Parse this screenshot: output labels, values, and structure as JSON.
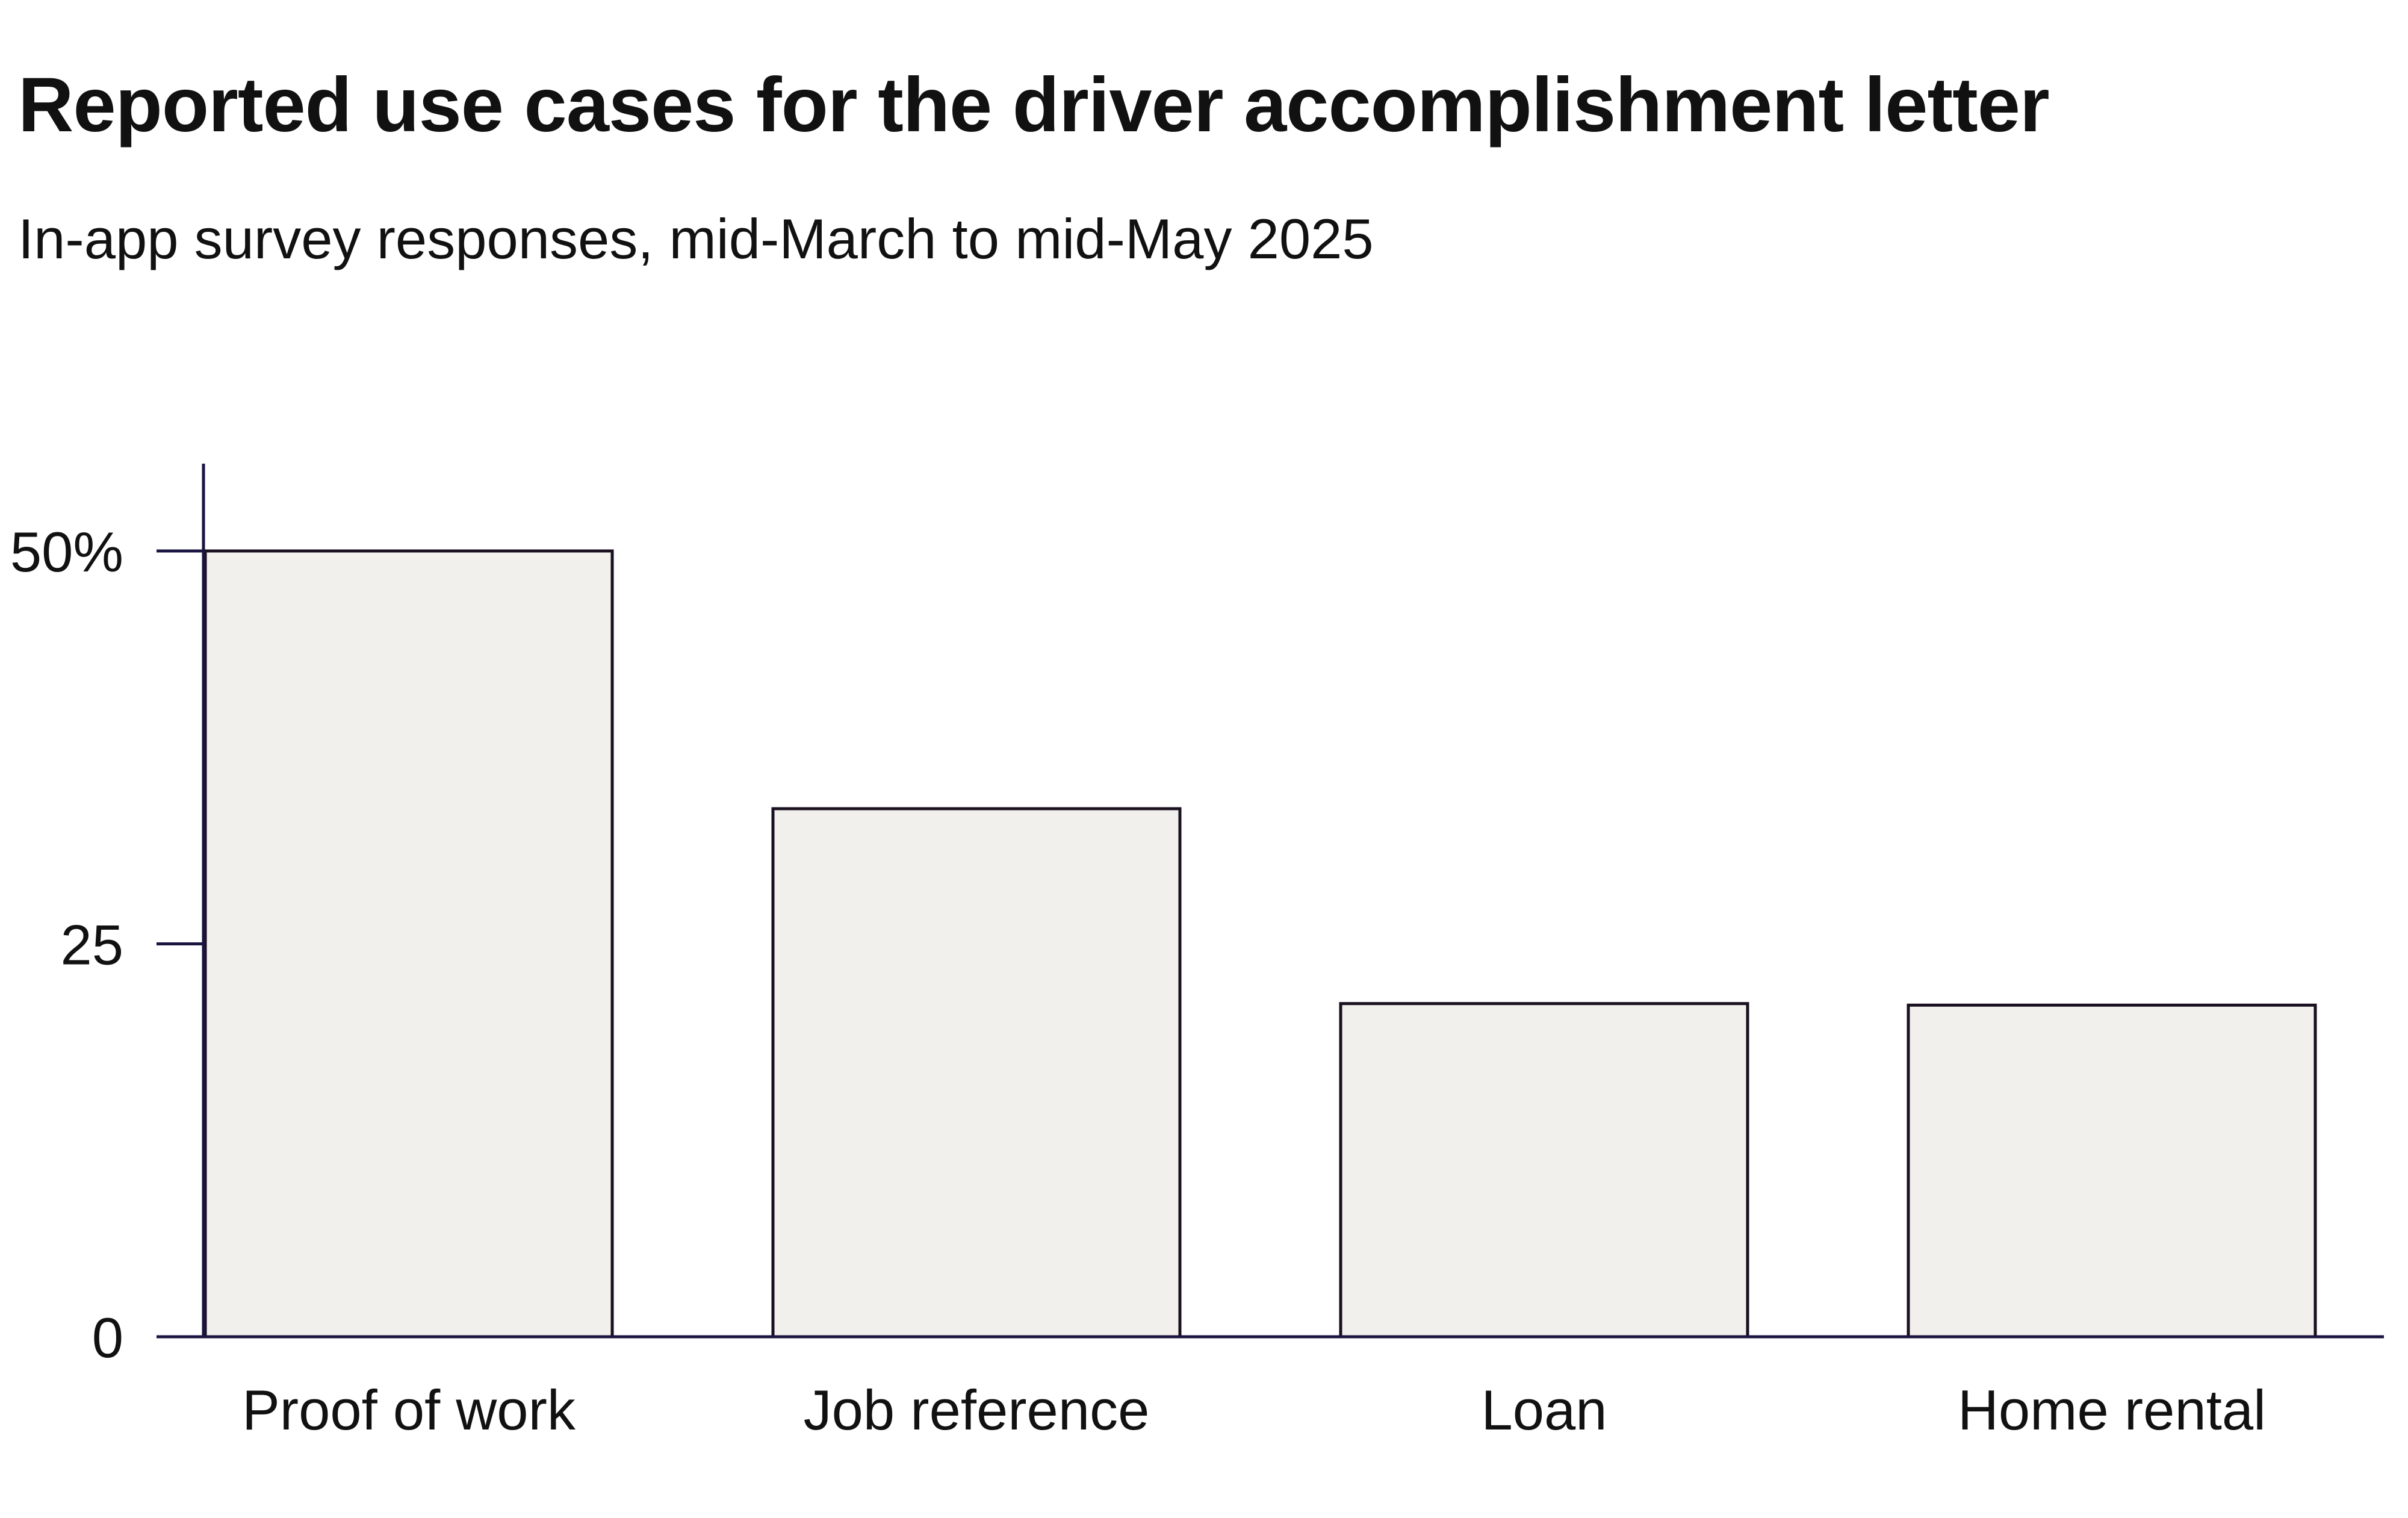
{
  "chart_data": {
    "type": "bar",
    "title": "Reported use cases for the driver accomplishment letter",
    "subtitle": "In-app survey responses, mid-March to mid-May 2025",
    "categories": [
      "Proof of work",
      "Job reference",
      "Loan",
      "Home rental"
    ],
    "values": [
      50,
      33.6,
      21.2,
      21.1
    ],
    "ylim": [
      0,
      55
    ],
    "yticks": [
      0,
      25,
      50
    ],
    "ytick_labels": [
      "0",
      "25",
      "50%"
    ],
    "xlabel": "",
    "ylabel": "",
    "grid": false,
    "legend": "none",
    "colors": {
      "bar_fill": "#f2f0ec",
      "bar_stroke": "#1a1020",
      "axis": "#1a1440",
      "text": "#111111"
    }
  }
}
